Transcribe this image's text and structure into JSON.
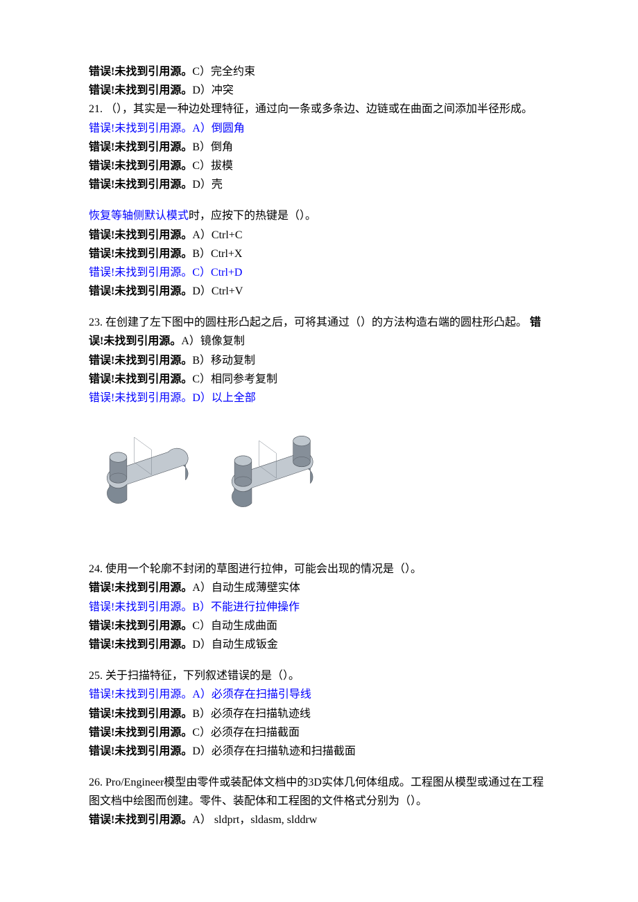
{
  "err": "错误!未找到引用源。",
  "prelines": [
    {
      "opt": "C）完全约束",
      "blue": false
    },
    {
      "opt": "D）冲突",
      "blue": false
    }
  ],
  "q21": {
    "num": "21.  （），其实是一种边处理特征，通过向一条或多条边、边链或在曲面之间添加半径形成。",
    "opts": [
      {
        "txt": "A）倒圆角",
        "blue": true
      },
      {
        "txt": "B）倒角",
        "blue": false
      },
      {
        "txt": "C）拔模",
        "blue": false
      },
      {
        "txt": "D）壳",
        "blue": false
      }
    ]
  },
  "q22": {
    "lead_blue": "恢复等轴侧默认模式",
    "lead_rest": "时，应按下的热键是（）。",
    "opts": [
      {
        "txt": "A）Ctrl+C",
        "blue": false
      },
      {
        "txt": "B）Ctrl+X",
        "blue": false
      },
      {
        "txt": "C）Ctrl+D",
        "blue": true
      },
      {
        "txt": "D）Ctrl+V",
        "blue": false
      }
    ]
  },
  "q23": {
    "num": "23.  在创建了左下图中的圆柱形凸起之后，可将其通过（）的方法构造右端的圆柱形凸起。  ",
    "optA_txt": "A）镜像复制",
    "opts": [
      {
        "txt": "B）移动复制",
        "blue": false
      },
      {
        "txt": "C）相同参考复制",
        "blue": false
      },
      {
        "txt": "D）以上全部",
        "blue": true
      }
    ]
  },
  "q24": {
    "num": "24. 使用一个轮廓不封闭的草图进行拉伸，可能会出现的情况是（）。",
    "opts": [
      {
        "txt": "A）自动生成薄壁实体",
        "blue": false
      },
      {
        "txt": "B）不能进行拉伸操作",
        "blue": true
      },
      {
        "txt": "C）自动生成曲面",
        "blue": false
      },
      {
        "txt": "D）自动生成钣金",
        "blue": false
      }
    ]
  },
  "q25": {
    "num": "25. 关于扫描特征，下列叙述错误的是（）。",
    "opts": [
      {
        "txt": "A）必须存在扫描引导线",
        "blue": true
      },
      {
        "txt": "B）必须存在扫描轨迹线",
        "blue": false
      },
      {
        "txt": "C）必须存在扫描截面",
        "blue": false
      },
      {
        "txt": "D）必须存在扫描轨迹和扫描截面",
        "blue": false
      }
    ]
  },
  "q26": {
    "num": "26. Pro/Engineer模型由零件或装配体文档中的3D实体几何体组成。工程图从模型或通过在工程图文档中绘图而创建。零件、装配体和工程图的文件格式分别为（）。",
    "opts": [
      {
        "txt": "A）  sldprt，sldasm, slddrw",
        "blue": false
      }
    ]
  },
  "figure": {
    "colors": {
      "body_top": "#c2c9d0",
      "body_front": "#9aa4ae",
      "body_side": "#7e8994",
      "cyl_top": "#bfc7ce",
      "cyl_side": "#868f99",
      "line": "#555b63"
    }
  }
}
